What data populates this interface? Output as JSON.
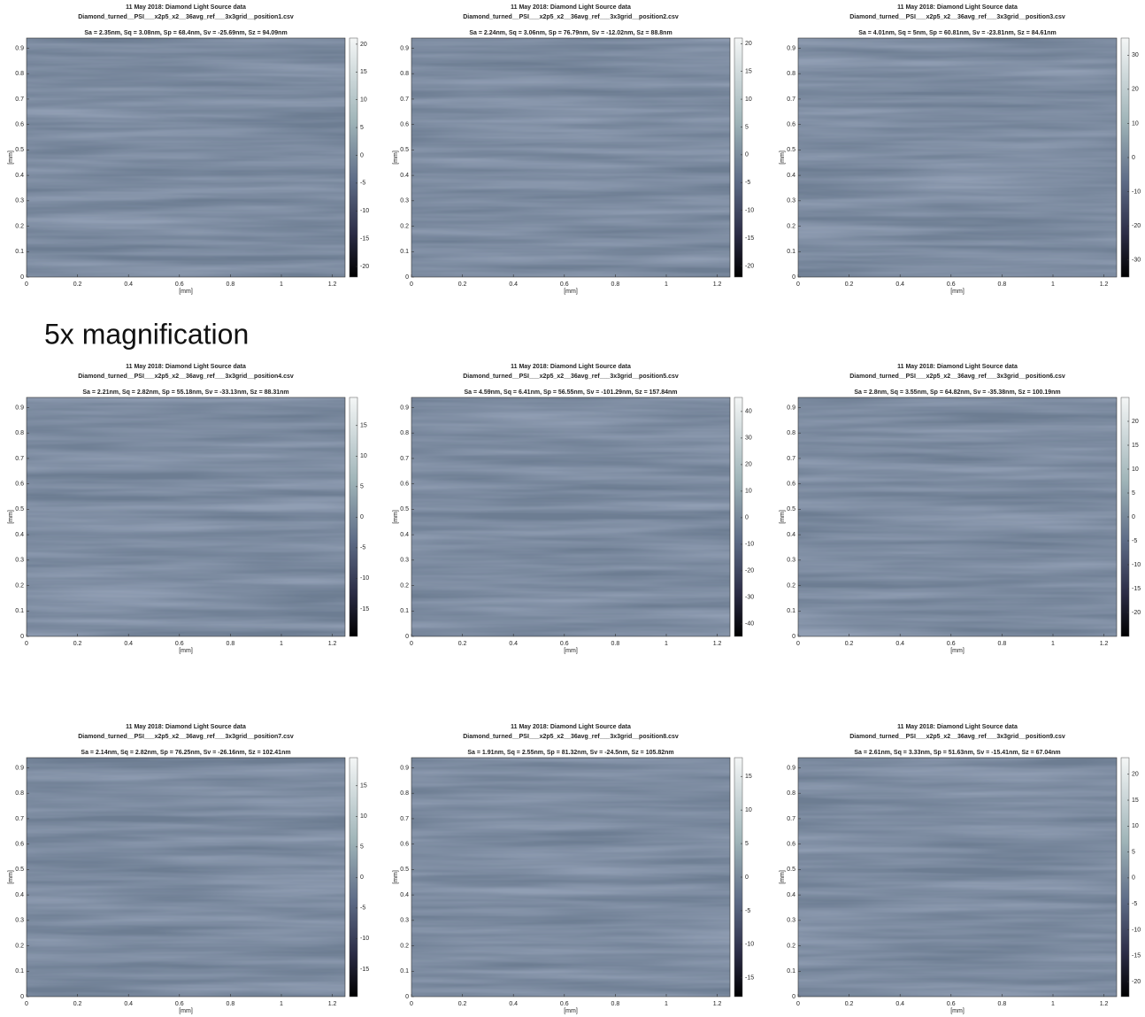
{
  "heading": "5x magnification",
  "chart_data": [
    {
      "type": "surface-map",
      "title": "11 May 2018: Diamond Light Source data",
      "subtitle": "Diamond_turned__PSI___x2p5_x2__36avg_ref___3x3grid__position1.csv",
      "stats": "Sa = 2.35nm, Sq = 3.08nm, Sp = 68.4nm, Sv = -25.69nm, Sz = 94.09nm",
      "xlabel": "[mm]",
      "ylabel": "[mm]",
      "xlim": [
        0,
        1.25
      ],
      "xticks": [
        0,
        0.2,
        0.4,
        0.6,
        0.8,
        1,
        1.2
      ],
      "ylim": [
        0,
        0.94
      ],
      "yticks": [
        0,
        0.1,
        0.2,
        0.3,
        0.4,
        0.5,
        0.6,
        0.7,
        0.8,
        0.9
      ],
      "clim": [
        -21.9,
        21.1
      ],
      "cticks": [
        -20,
        -15,
        -10,
        -5,
        0,
        5,
        10,
        15,
        20
      ]
    },
    {
      "type": "surface-map",
      "title": "11 May 2018: Diamond Light Source data",
      "subtitle": "Diamond_turned__PSI___x2p5_x2__36avg_ref___3x3grid__position2.csv",
      "stats": "Sa = 2.24nm, Sq = 3.06nm, Sp = 76.79nm, Sv = -12.02nm, Sz = 88.8nm",
      "xlabel": "[mm]",
      "ylabel": "[mm]",
      "xlim": [
        0,
        1.25
      ],
      "xticks": [
        0,
        0.2,
        0.4,
        0.6,
        0.8,
        1,
        1.2
      ],
      "ylim": [
        0,
        0.94
      ],
      "yticks": [
        0,
        0.1,
        0.2,
        0.3,
        0.4,
        0.5,
        0.6,
        0.7,
        0.8,
        0.9
      ],
      "clim": [
        -22,
        21
      ],
      "cticks": [
        -20,
        -15,
        -10,
        -5,
        0,
        5,
        10,
        15,
        20
      ]
    },
    {
      "type": "surface-map",
      "title": "11 May 2018: Diamond Light Source data",
      "subtitle": "Diamond_turned__PSI___x2p5_x2__36avg_ref___3x3grid__position3.csv",
      "stats": "Sa = 4.01nm, Sq = 5nm, Sp = 60.81nm, Sv = -23.81nm, Sz = 84.61nm",
      "xlabel": "[mm]",
      "ylabel": "[mm]",
      "xlim": [
        0,
        1.25
      ],
      "xticks": [
        0,
        0.2,
        0.4,
        0.6,
        0.8,
        1,
        1.2
      ],
      "ylim": [
        0,
        0.94
      ],
      "yticks": [
        0,
        0.1,
        0.2,
        0.3,
        0.4,
        0.5,
        0.6,
        0.7,
        0.8,
        0.9
      ],
      "clim": [
        -35,
        35
      ],
      "cticks": [
        -30,
        -20,
        -10,
        0,
        10,
        20,
        30
      ]
    },
    {
      "type": "surface-map",
      "title": "11 May 2018: Diamond Light Source data",
      "subtitle": "Diamond_turned__PSI___x2p5_x2__36avg_ref___3x3grid__position4.csv",
      "stats": "Sa = 2.21nm, Sq = 2.82nm, Sp = 55.18nm, Sv = -33.13nm, Sz = 88.31nm",
      "xlabel": "[mm]",
      "ylabel": "[mm]",
      "xlim": [
        0,
        1.25
      ],
      "xticks": [
        0,
        0.2,
        0.4,
        0.6,
        0.8,
        1,
        1.2
      ],
      "ylim": [
        0,
        0.94
      ],
      "yticks": [
        0,
        0.1,
        0.2,
        0.3,
        0.4,
        0.5,
        0.6,
        0.7,
        0.8,
        0.9
      ],
      "clim": [
        -19.5,
        19.6
      ],
      "cticks": [
        -15,
        -10,
        -5,
        0,
        5,
        10,
        15
      ]
    },
    {
      "type": "surface-map",
      "title": "11 May 2018: Diamond Light Source data",
      "subtitle": "Diamond_turned__PSI___x2p5_x2__36avg_ref___3x3grid__position5.csv",
      "stats": "Sa = 4.59nm, Sq = 6.41nm, Sp = 56.55nm, Sv = -101.29nm, Sz = 157.84nm",
      "xlabel": "[mm]",
      "ylabel": "[mm]",
      "xlim": [
        0,
        1.25
      ],
      "xticks": [
        0,
        0.2,
        0.4,
        0.6,
        0.8,
        1,
        1.2
      ],
      "ylim": [
        0,
        0.94
      ],
      "yticks": [
        0,
        0.1,
        0.2,
        0.3,
        0.4,
        0.5,
        0.6,
        0.7,
        0.8,
        0.9
      ],
      "clim": [
        -44.7,
        45.3
      ],
      "cticks": [
        -40,
        -30,
        -20,
        -10,
        0,
        10,
        20,
        30,
        40
      ]
    },
    {
      "type": "surface-map",
      "title": "11 May 2018: Diamond Light Source data",
      "subtitle": "Diamond_turned__PSI___x2p5_x2__36avg_ref___3x3grid__position6.csv",
      "stats": "Sa = 2.8nm, Sq = 3.55nm, Sp = 64.82nm, Sv = -35.38nm, Sz = 100.19nm",
      "xlabel": "[mm]",
      "ylabel": "[mm]",
      "xlim": [
        0,
        1.25
      ],
      "xticks": [
        0,
        0.2,
        0.4,
        0.6,
        0.8,
        1,
        1.2
      ],
      "ylim": [
        0,
        0.94
      ],
      "yticks": [
        0,
        0.1,
        0.2,
        0.3,
        0.4,
        0.5,
        0.6,
        0.7,
        0.8,
        0.9
      ],
      "clim": [
        -25,
        25
      ],
      "cticks": [
        -20,
        -15,
        -10,
        -5,
        0,
        5,
        10,
        15,
        20
      ]
    },
    {
      "type": "surface-map",
      "title": "11 May 2018: Diamond Light Source data",
      "subtitle": "Diamond_turned__PSI___x2p5_x2__36avg_ref___3x3grid__position7.csv",
      "stats": "Sa = 2.14nm, Sq = 2.82nm, Sp = 76.25nm, Sv = -26.16nm, Sz = 102.41nm",
      "xlabel": "[mm]",
      "ylabel": "[mm]",
      "xlim": [
        0,
        1.25
      ],
      "xticks": [
        0,
        0.2,
        0.4,
        0.6,
        0.8,
        1,
        1.2
      ],
      "ylim": [
        0,
        0.94
      ],
      "yticks": [
        0,
        0.1,
        0.2,
        0.3,
        0.4,
        0.5,
        0.6,
        0.7,
        0.8,
        0.9
      ],
      "clim": [
        -19.5,
        19.6
      ],
      "cticks": [
        -15,
        -10,
        -5,
        0,
        5,
        10,
        15
      ]
    },
    {
      "type": "surface-map",
      "title": "11 May 2018: Diamond Light Source data",
      "subtitle": "Diamond_turned__PSI___x2p5_x2__36avg_ref___3x3grid__position8.csv",
      "stats": "Sa = 1.91nm, Sq = 2.55nm, Sp = 81.32nm, Sv = -24.5nm, Sz = 105.82nm",
      "xlabel": "[mm]",
      "ylabel": "[mm]",
      "xlim": [
        0,
        1.25
      ],
      "xticks": [
        0,
        0.2,
        0.4,
        0.6,
        0.8,
        1,
        1.2
      ],
      "ylim": [
        0,
        0.94
      ],
      "yticks": [
        0,
        0.1,
        0.2,
        0.3,
        0.4,
        0.5,
        0.6,
        0.7,
        0.8,
        0.9
      ],
      "clim": [
        -17.8,
        17.8
      ],
      "cticks": [
        -15,
        -10,
        -5,
        0,
        5,
        10,
        15
      ]
    },
    {
      "type": "surface-map",
      "title": "11 May 2018: Diamond Light Source data",
      "subtitle": "Diamond_turned__PSI___x2p5_x2__36avg_ref___3x3grid__position9.csv",
      "stats": "Sa = 2.61nm, Sq = 3.33nm, Sp = 51.63nm, Sv = -15.41nm, Sz = 67.04nm",
      "xlabel": "[mm]",
      "ylabel": "[mm]",
      "xlim": [
        0,
        1.25
      ],
      "xticks": [
        0,
        0.2,
        0.4,
        0.6,
        0.8,
        1,
        1.2
      ],
      "ylim": [
        0,
        0.94
      ],
      "yticks": [
        0,
        0.1,
        0.2,
        0.3,
        0.4,
        0.5,
        0.6,
        0.7,
        0.8,
        0.9
      ],
      "clim": [
        -22.9,
        23.2
      ],
      "cticks": [
        -20,
        -15,
        -10,
        -5,
        0,
        5,
        10,
        15,
        20
      ]
    }
  ]
}
